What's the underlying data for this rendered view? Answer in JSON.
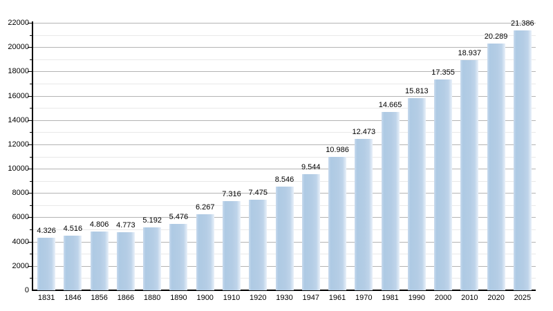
{
  "chart_data": {
    "type": "bar",
    "title": "",
    "xlabel": "",
    "ylabel": "",
    "categories": [
      "1831",
      "1846",
      "1856",
      "1866",
      "1880",
      "1890",
      "1900",
      "1910",
      "1920",
      "1930",
      "1947",
      "1961",
      "1970",
      "1981",
      "1990",
      "2000",
      "2010",
      "2020",
      "2025"
    ],
    "values": [
      4326,
      4516,
      4806,
      4773,
      5192,
      5476,
      6267,
      7316,
      7475,
      8546,
      9544,
      10986,
      12473,
      14665,
      15813,
      17355,
      18937,
      20289,
      21386
    ],
    "value_labels": [
      "4.326",
      "4.516",
      "4.806",
      "4.773",
      "5.192",
      "5.476",
      "6.267",
      "7.316",
      "7.475",
      "8.546",
      "9.544",
      "10.986",
      "12.473",
      "14.665",
      "15.813",
      "17.355",
      "18.937",
      "20.289",
      "21.386"
    ],
    "ylim": [
      0,
      22000
    ],
    "y_major_step": 2000,
    "y_minor_step": 1000,
    "y_tick_labels": [
      "0",
      "2000",
      "4000",
      "6000",
      "8000",
      "10000",
      "12000",
      "14000",
      "16000",
      "18000",
      "20000",
      "22000"
    ],
    "grid": true,
    "legend_position": "none"
  },
  "style": {
    "background": "#ffffff",
    "bar_color_main": "#b4cde5",
    "bar_color_dark": "#aecae4",
    "bar_color_mid": "#bfd4ea",
    "bar_color_light": "#e9f1f9",
    "bar_color_edge": "#c9daee",
    "major_grid_color": "#b3b3b3",
    "minor_grid_color": "#e8e8e8",
    "axis_color": "#000000",
    "label_color": "#000000"
  }
}
